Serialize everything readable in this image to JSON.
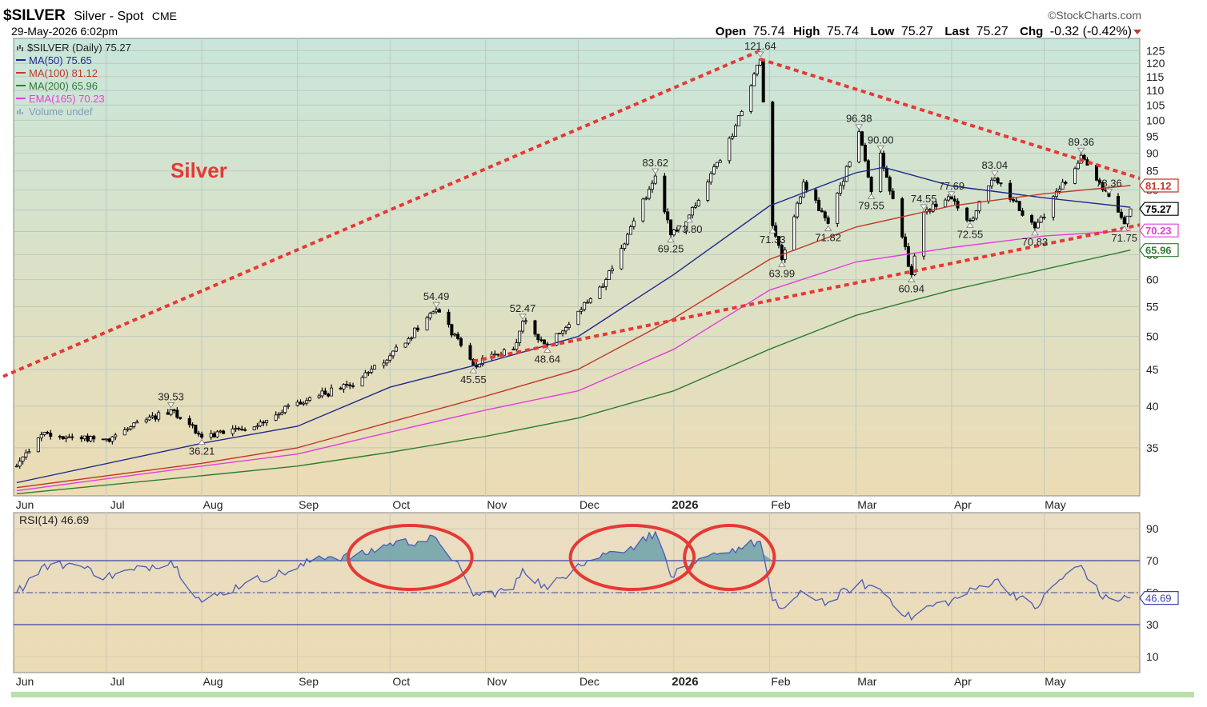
{
  "header": {
    "symbol": "$SILVER",
    "name": "Silver - Spot",
    "exchange": "CME",
    "datetime": "29-May-2026 6:02pm",
    "brand": "©StockCharts.com",
    "open_label": "Open",
    "open": "75.74",
    "high_label": "High",
    "high": "75.74",
    "low_label": "Low",
    "low": "75.27",
    "last_label": "Last",
    "last": "75.27",
    "chg_label": "Chg",
    "chg": "-0.32 (-0.42%)"
  },
  "legend": [
    {
      "text": "$SILVER (Daily) 75.27",
      "color": "#000000"
    },
    {
      "text": "MA(50) 75.65",
      "color": "#1f2a8c"
    },
    {
      "text": "MA(100) 81.12",
      "color": "#c0392b"
    },
    {
      "text": "MA(200) 65.96",
      "color": "#2e7d32"
    },
    {
      "text": "EMA(165) 70.23",
      "color": "#e040d8"
    },
    {
      "text": "Volume undef",
      "color": "#7f9fbf"
    }
  ],
  "chart_title": "Silver",
  "colors": {
    "price_bar": "#000000",
    "ma50": "#1f2a8c",
    "ma100": "#c0392b",
    "ma200": "#2e7d32",
    "ema165": "#e040d8",
    "trendline": "#e53935",
    "rsi_line": "#4a5ab8",
    "rsi_fill": "#5b9aa8",
    "circle": "#e53935",
    "panel_bg_top": "#c9e6da",
    "panel_bg_bottom": "#ecdcb4"
  },
  "chart_data": [
    {
      "type": "line",
      "title": "Silver",
      "series_name": "$SILVER (Daily)",
      "scale": "log",
      "ylim": [
        30,
        130
      ],
      "y_ticks": [
        35,
        40,
        45,
        50,
        55,
        60,
        65,
        70,
        75,
        80,
        85,
        90,
        95,
        100,
        105,
        110,
        115,
        120,
        125
      ],
      "x_months": [
        "Jun",
        "Jul",
        "Aug",
        "Sep",
        "Oct",
        "Nov",
        "Dec",
        "2026",
        "Feb",
        "Mar",
        "Apr",
        "May"
      ],
      "price_key_points": [
        {
          "date": "2025-06-02",
          "close": 33.0
        },
        {
          "date": "2025-06-10",
          "close": 36.5
        },
        {
          "date": "2025-07-01",
          "close": 36.0
        },
        {
          "date": "2025-07-22",
          "close": 39.53
        },
        {
          "date": "2025-08-01",
          "close": 36.21
        },
        {
          "date": "2025-08-20",
          "close": 38.0
        },
        {
          "date": "2025-09-01",
          "close": 40.5
        },
        {
          "date": "2025-09-20",
          "close": 43.0
        },
        {
          "date": "2025-10-01",
          "close": 47.0
        },
        {
          "date": "2025-10-16",
          "close": 54.49
        },
        {
          "date": "2025-10-28",
          "close": 45.55
        },
        {
          "date": "2025-11-10",
          "close": 48.0
        },
        {
          "date": "2025-11-13",
          "close": 52.47
        },
        {
          "date": "2025-11-21",
          "close": 48.64
        },
        {
          "date": "2025-12-10",
          "close": 60.0
        },
        {
          "date": "2025-12-26",
          "close": 83.62
        },
        {
          "date": "2025-12-31",
          "close": 69.25
        },
        {
          "date": "2026-01-06",
          "close": 73.8
        },
        {
          "date": "2026-01-20",
          "close": 95.0
        },
        {
          "date": "2026-01-29",
          "close": 121.64
        },
        {
          "date": "2026-02-02",
          "close": 71.33
        },
        {
          "date": "2026-02-05",
          "close": 63.99
        },
        {
          "date": "2026-02-12",
          "close": 82.0
        },
        {
          "date": "2026-02-20",
          "close": 71.82
        },
        {
          "date": "2026-03-02",
          "close": 96.38
        },
        {
          "date": "2026-03-06",
          "close": 79.55
        },
        {
          "date": "2026-03-09",
          "close": 90.0
        },
        {
          "date": "2026-03-19",
          "close": 60.94
        },
        {
          "date": "2026-03-23",
          "close": 74.55
        },
        {
          "date": "2026-04-01",
          "close": 77.69
        },
        {
          "date": "2026-04-07",
          "close": 72.55
        },
        {
          "date": "2026-04-15",
          "close": 83.04
        },
        {
          "date": "2026-04-28",
          "close": 70.83
        },
        {
          "date": "2026-05-13",
          "close": 89.36
        },
        {
          "date": "2026-05-22",
          "close": 78.36
        },
        {
          "date": "2026-05-27",
          "close": 71.75
        },
        {
          "date": "2026-05-29",
          "close": 75.27
        }
      ],
      "annotations": [
        {
          "text": "39.53",
          "date": "2025-07-22",
          "value": 39.53,
          "pos": "above"
        },
        {
          "text": "36.21",
          "date": "2025-08-01",
          "value": 36.21,
          "pos": "below"
        },
        {
          "text": "54.49",
          "date": "2025-10-16",
          "value": 54.49,
          "pos": "above"
        },
        {
          "text": "45.55",
          "date": "2025-10-28",
          "value": 45.55,
          "pos": "below"
        },
        {
          "text": "52.47",
          "date": "2025-11-13",
          "value": 52.47,
          "pos": "above"
        },
        {
          "text": "48.64",
          "date": "2025-11-21",
          "value": 48.64,
          "pos": "below"
        },
        {
          "text": "83.62",
          "date": "2025-12-26",
          "value": 83.62,
          "pos": "above"
        },
        {
          "text": "69.25",
          "date": "2025-12-31",
          "value": 69.25,
          "pos": "below"
        },
        {
          "text": "73.80",
          "date": "2026-01-06",
          "value": 73.8,
          "pos": "below"
        },
        {
          "text": "121.64",
          "date": "2026-01-29",
          "value": 121.64,
          "pos": "above"
        },
        {
          "text": "71.33",
          "date": "2026-02-02",
          "value": 71.33,
          "pos": "below"
        },
        {
          "text": "63.99",
          "date": "2026-02-05",
          "value": 63.99,
          "pos": "below"
        },
        {
          "text": "71.82",
          "date": "2026-02-20",
          "value": 71.82,
          "pos": "below"
        },
        {
          "text": "96.38",
          "date": "2026-03-02",
          "value": 96.38,
          "pos": "above"
        },
        {
          "text": "79.55",
          "date": "2026-03-06",
          "value": 79.55,
          "pos": "below"
        },
        {
          "text": "90.00",
          "date": "2026-03-09",
          "value": 90.0,
          "pos": "above"
        },
        {
          "text": "60.94",
          "date": "2026-03-19",
          "value": 60.94,
          "pos": "below"
        },
        {
          "text": "74.55",
          "date": "2026-03-23",
          "value": 74.55,
          "pos": "above"
        },
        {
          "text": "77.69",
          "date": "2026-04-01",
          "value": 77.69,
          "pos": "above"
        },
        {
          "text": "72.55",
          "date": "2026-04-07",
          "value": 72.55,
          "pos": "below"
        },
        {
          "text": "83.04",
          "date": "2026-04-15",
          "value": 83.04,
          "pos": "above"
        },
        {
          "text": "70.83",
          "date": "2026-04-28",
          "value": 70.83,
          "pos": "below"
        },
        {
          "text": "89.36",
          "date": "2026-05-13",
          "value": 89.36,
          "pos": "above"
        },
        {
          "text": "78.36",
          "date": "2026-05-22",
          "value": 78.36,
          "pos": "above"
        },
        {
          "text": "71.75",
          "date": "2026-05-27",
          "value": 71.75,
          "pos": "below"
        }
      ],
      "price_tags": [
        {
          "text": "81.12",
          "value": 81.12,
          "color": "#c0392b"
        },
        {
          "text": "75.27",
          "value": 75.27,
          "color": "#000000"
        },
        {
          "text": "70.23",
          "value": 70.23,
          "color": "#e040d8"
        },
        {
          "text": "65.96",
          "value": 65.96,
          "color": "#2e7d32"
        }
      ],
      "moving_averages": [
        {
          "name": "MA(50)",
          "last": 75.65,
          "points": [
            [
              "2025-06-02",
              31.3
            ],
            [
              "2025-08-01",
              35.5
            ],
            [
              "2025-09-01",
              37.5
            ],
            [
              "2025-10-01",
              42.5
            ],
            [
              "2025-11-01",
              46.0
            ],
            [
              "2025-12-01",
              50.0
            ],
            [
              "2026-01-01",
              61.0
            ],
            [
              "2026-02-01",
              76.0
            ],
            [
              "2026-03-01",
              84.5
            ],
            [
              "2026-03-10",
              86.0
            ],
            [
              "2026-04-01",
              81.0
            ],
            [
              "2026-05-01",
              78.0
            ],
            [
              "2026-05-29",
              75.65
            ]
          ]
        },
        {
          "name": "MA(100)",
          "last": 81.12,
          "points": [
            [
              "2025-06-02",
              30.8
            ],
            [
              "2025-08-01",
              33.3
            ],
            [
              "2025-09-01",
              35.0
            ],
            [
              "2025-10-01",
              38.0
            ],
            [
              "2025-11-01",
              41.3
            ],
            [
              "2025-12-01",
              45.0
            ],
            [
              "2026-01-01",
              53.0
            ],
            [
              "2026-02-01",
              64.0
            ],
            [
              "2026-03-01",
              71.0
            ],
            [
              "2026-04-01",
              76.0
            ],
            [
              "2026-05-01",
              79.0
            ],
            [
              "2026-05-29",
              81.12
            ]
          ]
        },
        {
          "name": "MA(200)",
          "last": 65.96,
          "points": [
            [
              "2025-06-02",
              30.2
            ],
            [
              "2025-08-01",
              32.0
            ],
            [
              "2025-09-01",
              33.0
            ],
            [
              "2025-10-01",
              34.5
            ],
            [
              "2025-11-01",
              36.3
            ],
            [
              "2025-12-01",
              38.5
            ],
            [
              "2026-01-01",
              42.0
            ],
            [
              "2026-02-01",
              48.0
            ],
            [
              "2026-03-01",
              53.5
            ],
            [
              "2026-04-01",
              58.0
            ],
            [
              "2026-05-01",
              62.0
            ],
            [
              "2026-05-29",
              65.96
            ]
          ]
        },
        {
          "name": "EMA(165)",
          "last": 70.23,
          "points": [
            [
              "2025-06-02",
              30.5
            ],
            [
              "2025-08-01",
              33.0
            ],
            [
              "2025-09-01",
              34.3
            ],
            [
              "2025-10-01",
              36.8
            ],
            [
              "2025-11-01",
              39.5
            ],
            [
              "2025-12-01",
              42.0
            ],
            [
              "2026-01-01",
              48.0
            ],
            [
              "2026-02-01",
              58.0
            ],
            [
              "2026-03-01",
              63.5
            ],
            [
              "2026-04-01",
              66.5
            ],
            [
              "2026-05-01",
              69.0
            ],
            [
              "2026-05-29",
              70.23
            ]
          ]
        }
      ],
      "trendlines": [
        {
          "from": [
            "2025-05-26",
            43.5
          ],
          "to": [
            "2026-01-29",
            125.0
          ]
        },
        {
          "from": [
            "2026-01-29",
            121.64
          ],
          "to": [
            "2026-06-01",
            83.0
          ]
        },
        {
          "from": [
            "2025-10-28",
            46.2
          ],
          "to": [
            "2026-06-01",
            71.5
          ]
        }
      ]
    },
    {
      "type": "line",
      "title": "RSI(14) 46.69",
      "series_name": "RSI(14)",
      "ylim": [
        0,
        100
      ],
      "y_ticks": [
        10,
        30,
        50,
        70,
        90
      ],
      "overbought": 70,
      "oversold": 30,
      "midline": 50,
      "x_months": [
        "Jun",
        "Jul",
        "Aug",
        "Sep",
        "Oct",
        "Nov",
        "Dec",
        "2026",
        "Feb",
        "Mar",
        "Apr",
        "May"
      ],
      "last": 46.69,
      "key_points": [
        [
          "2025-06-02",
          50
        ],
        [
          "2025-06-10",
          66
        ],
        [
          "2025-06-20",
          68
        ],
        [
          "2025-07-01",
          60
        ],
        [
          "2025-07-10",
          64
        ],
        [
          "2025-07-22",
          70
        ],
        [
          "2025-08-01",
          44
        ],
        [
          "2025-08-15",
          56
        ],
        [
          "2025-09-01",
          65
        ],
        [
          "2025-09-08",
          73
        ],
        [
          "2025-09-20",
          72
        ],
        [
          "2025-10-01",
          81
        ],
        [
          "2025-10-10",
          82
        ],
        [
          "2025-10-16",
          84
        ],
        [
          "2025-10-22",
          70
        ],
        [
          "2025-10-28",
          48
        ],
        [
          "2025-11-10",
          52
        ],
        [
          "2025-11-13",
          65
        ],
        [
          "2025-11-21",
          52
        ],
        [
          "2025-12-01",
          68
        ],
        [
          "2025-12-10",
          74
        ],
        [
          "2025-12-20",
          80
        ],
        [
          "2025-12-26",
          88
        ],
        [
          "2025-12-31",
          60
        ],
        [
          "2026-01-06",
          66
        ],
        [
          "2026-01-15",
          74
        ],
        [
          "2026-01-29",
          82
        ],
        [
          "2026-02-02",
          45
        ],
        [
          "2026-02-05",
          40
        ],
        [
          "2026-02-12",
          50
        ],
        [
          "2026-02-20",
          44
        ],
        [
          "2026-03-02",
          56
        ],
        [
          "2026-03-09",
          52
        ],
        [
          "2026-03-19",
          33
        ],
        [
          "2026-03-23",
          40
        ],
        [
          "2026-04-01",
          45
        ],
        [
          "2026-04-15",
          58
        ],
        [
          "2026-04-28",
          40
        ],
        [
          "2026-05-06",
          58
        ],
        [
          "2026-05-13",
          67
        ],
        [
          "2026-05-20",
          46
        ],
        [
          "2026-05-29",
          46.69
        ]
      ],
      "circles": [
        {
          "from": "2025-09-19",
          "to": "2025-10-26"
        },
        {
          "from": "2025-11-30",
          "to": "2026-01-06"
        },
        {
          "from": "2026-01-06",
          "to": "2026-02-01"
        }
      ]
    }
  ]
}
